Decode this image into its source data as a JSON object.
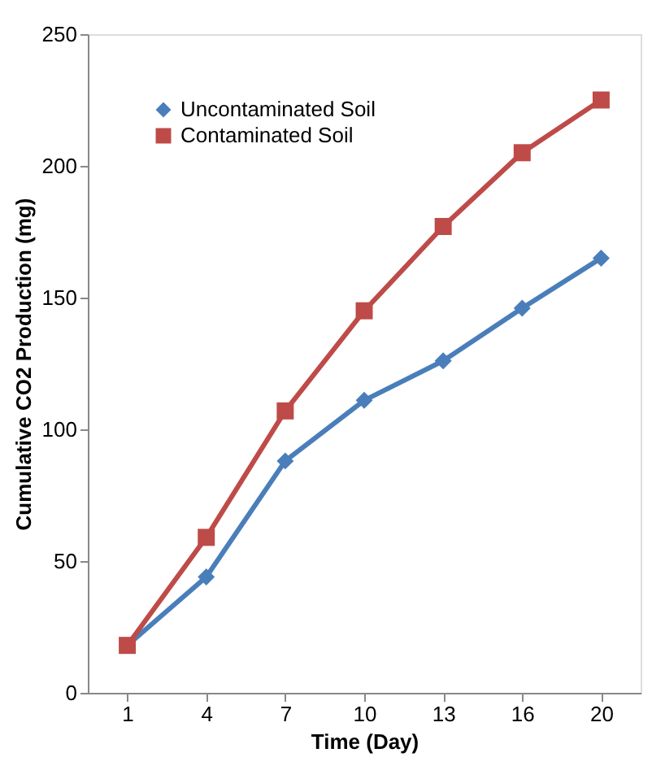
{
  "chart_data": {
    "type": "line",
    "xlabel": "Time  (Day)",
    "ylabel": "Cumulative CO2 Production (mg)",
    "categories": [
      "1",
      "4",
      "7",
      "10",
      "13",
      "16",
      "20"
    ],
    "series": [
      {
        "name": "Uncontaminated Soil",
        "color": "#4a7ebb",
        "marker": "diamond",
        "values": [
          18,
          44,
          88,
          111,
          126,
          146,
          165
        ]
      },
      {
        "name": "Contaminated Soil",
        "color": "#be4b48",
        "marker": "square",
        "values": [
          18,
          59,
          107,
          145,
          177,
          205,
          225
        ]
      }
    ],
    "ylim": [
      0,
      250
    ],
    "yticks": [
      0,
      50,
      100,
      150,
      200,
      250
    ],
    "grid": false,
    "legend": "top left",
    "line_style": "solid"
  }
}
